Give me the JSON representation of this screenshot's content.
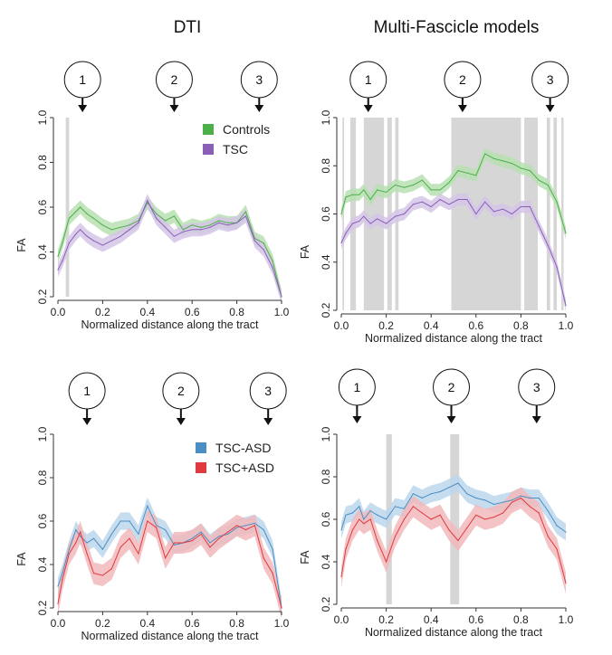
{
  "columns": [
    "DTI",
    "Multi-Fascicle models"
  ],
  "marker_labels": [
    "1",
    "2",
    "3"
  ],
  "palette": {
    "Controls": "#4daf4a",
    "TSC": "#8a5fb8",
    "TSC-ASD": "#4a8ec4",
    "TSC+ASD": "#e03a3e",
    "significance": "#d6d6d6"
  },
  "chart_data": [
    {
      "type": "line",
      "panel": "top-left",
      "column": "DTI",
      "xlabel": "Normalized distance along the tract",
      "ylabel": "FA",
      "xlim": [
        0,
        1
      ],
      "ylim": [
        0.2,
        1.0
      ],
      "xticks": [
        "0.0",
        "0.2",
        "0.4",
        "0.6",
        "0.8",
        "1.0"
      ],
      "yticks": [
        "0.2",
        "0.4",
        "0.6",
        "0.8",
        "1.0"
      ],
      "markers": [
        0.11,
        0.52,
        0.9
      ],
      "legend": "top-right",
      "significance_bands": [
        [
          0.035,
          0.05
        ]
      ],
      "series": [
        {
          "name": "Controls",
          "x": [
            0,
            0.02,
            0.05,
            0.08,
            0.1,
            0.13,
            0.16,
            0.2,
            0.24,
            0.28,
            0.32,
            0.36,
            0.4,
            0.44,
            0.48,
            0.52,
            0.56,
            0.6,
            0.64,
            0.68,
            0.72,
            0.76,
            0.8,
            0.84,
            0.88,
            0.92,
            0.96,
            1.0
          ],
          "values": [
            0.38,
            0.44,
            0.55,
            0.58,
            0.6,
            0.57,
            0.55,
            0.52,
            0.5,
            0.51,
            0.52,
            0.54,
            0.62,
            0.57,
            0.54,
            0.56,
            0.5,
            0.52,
            0.51,
            0.52,
            0.54,
            0.53,
            0.53,
            0.58,
            0.46,
            0.44,
            0.36,
            0.2
          ],
          "band": 0.03
        },
        {
          "name": "TSC",
          "x": [
            0,
            0.02,
            0.05,
            0.08,
            0.1,
            0.13,
            0.16,
            0.2,
            0.24,
            0.28,
            0.32,
            0.36,
            0.4,
            0.44,
            0.48,
            0.52,
            0.56,
            0.6,
            0.64,
            0.68,
            0.72,
            0.76,
            0.8,
            0.84,
            0.88,
            0.92,
            0.96,
            1.0
          ],
          "values": [
            0.32,
            0.36,
            0.44,
            0.48,
            0.5,
            0.47,
            0.45,
            0.43,
            0.45,
            0.47,
            0.5,
            0.53,
            0.63,
            0.55,
            0.51,
            0.47,
            0.49,
            0.5,
            0.5,
            0.51,
            0.53,
            0.52,
            0.53,
            0.56,
            0.45,
            0.41,
            0.33,
            0.2
          ],
          "band": 0.03
        }
      ]
    },
    {
      "type": "line",
      "panel": "top-right",
      "column": "Multi-Fascicle models",
      "xlabel": "Normalized distance along the tract",
      "ylabel": "FA",
      "xlim": [
        0,
        1
      ],
      "ylim": [
        0.2,
        1.0
      ],
      "xticks": [
        "0.0",
        "0.2",
        "0.4",
        "0.6",
        "0.8",
        "1.0"
      ],
      "yticks": [
        "0.2",
        "0.4",
        "0.6",
        "0.8",
        "1.0"
      ],
      "markers": [
        0.12,
        0.54,
        0.93
      ],
      "significance_bands": [
        [
          0.005,
          0.012
        ],
        [
          0.04,
          0.065
        ],
        [
          0.1,
          0.19
        ],
        [
          0.205,
          0.225
        ],
        [
          0.24,
          0.255
        ],
        [
          0.49,
          0.8
        ],
        [
          0.815,
          0.875
        ],
        [
          0.915,
          0.93
        ],
        [
          0.945,
          0.96
        ],
        [
          0.98,
          0.99
        ]
      ],
      "series": [
        {
          "name": "Controls",
          "x": [
            0,
            0.02,
            0.05,
            0.08,
            0.1,
            0.13,
            0.16,
            0.2,
            0.24,
            0.28,
            0.32,
            0.36,
            0.4,
            0.44,
            0.48,
            0.52,
            0.56,
            0.6,
            0.64,
            0.68,
            0.72,
            0.76,
            0.8,
            0.84,
            0.88,
            0.92,
            0.96,
            1.0
          ],
          "values": [
            0.6,
            0.67,
            0.68,
            0.68,
            0.7,
            0.66,
            0.7,
            0.69,
            0.72,
            0.71,
            0.72,
            0.74,
            0.7,
            0.7,
            0.73,
            0.78,
            0.77,
            0.76,
            0.85,
            0.83,
            0.82,
            0.81,
            0.79,
            0.78,
            0.74,
            0.72,
            0.65,
            0.52
          ],
          "band": 0.025
        },
        {
          "name": "TSC",
          "x": [
            0,
            0.02,
            0.05,
            0.08,
            0.1,
            0.13,
            0.16,
            0.2,
            0.24,
            0.28,
            0.32,
            0.36,
            0.4,
            0.44,
            0.48,
            0.52,
            0.56,
            0.6,
            0.64,
            0.68,
            0.72,
            0.76,
            0.8,
            0.84,
            0.88,
            0.92,
            0.96,
            1.0
          ],
          "values": [
            0.48,
            0.52,
            0.56,
            0.57,
            0.59,
            0.56,
            0.58,
            0.56,
            0.59,
            0.6,
            0.64,
            0.65,
            0.63,
            0.66,
            0.64,
            0.66,
            0.66,
            0.6,
            0.65,
            0.61,
            0.62,
            0.6,
            0.63,
            0.63,
            0.55,
            0.47,
            0.38,
            0.22
          ],
          "band": 0.025
        }
      ]
    },
    {
      "type": "line",
      "panel": "bottom-left",
      "column": "DTI",
      "xlabel": "Normalized distance along the tract",
      "ylabel": "FA",
      "xlim": [
        0,
        1
      ],
      "ylim": [
        0.2,
        1.0
      ],
      "xticks": [
        "0.0",
        "0.2",
        "0.4",
        "0.6",
        "0.8",
        "1.0"
      ],
      "yticks": [
        "0.2",
        "0.4",
        "0.6",
        "0.8",
        "1.0"
      ],
      "markers": [
        0.13,
        0.55,
        0.94
      ],
      "legend": "top-right",
      "significance_bands": [],
      "series": [
        {
          "name": "TSC-ASD",
          "x": [
            0,
            0.02,
            0.05,
            0.08,
            0.1,
            0.13,
            0.16,
            0.2,
            0.24,
            0.28,
            0.32,
            0.36,
            0.4,
            0.44,
            0.48,
            0.52,
            0.56,
            0.6,
            0.64,
            0.68,
            0.72,
            0.76,
            0.8,
            0.84,
            0.88,
            0.92,
            0.96,
            1.0
          ],
          "values": [
            0.3,
            0.36,
            0.47,
            0.56,
            0.53,
            0.5,
            0.52,
            0.47,
            0.54,
            0.6,
            0.6,
            0.54,
            0.67,
            0.58,
            0.56,
            0.49,
            0.5,
            0.52,
            0.55,
            0.5,
            0.53,
            0.54,
            0.57,
            0.58,
            0.59,
            0.56,
            0.47,
            0.2
          ],
          "band": 0.04
        },
        {
          "name": "TSC+ASD",
          "x": [
            0,
            0.02,
            0.05,
            0.08,
            0.1,
            0.13,
            0.16,
            0.2,
            0.24,
            0.28,
            0.32,
            0.36,
            0.4,
            0.44,
            0.48,
            0.52,
            0.56,
            0.6,
            0.64,
            0.68,
            0.72,
            0.76,
            0.8,
            0.84,
            0.88,
            0.92,
            0.96,
            1.0
          ],
          "values": [
            0.22,
            0.33,
            0.45,
            0.5,
            0.55,
            0.45,
            0.36,
            0.35,
            0.38,
            0.48,
            0.52,
            0.45,
            0.6,
            0.57,
            0.43,
            0.5,
            0.5,
            0.51,
            0.54,
            0.48,
            0.52,
            0.55,
            0.58,
            0.56,
            0.58,
            0.43,
            0.36,
            0.2
          ],
          "band": 0.05
        }
      ]
    },
    {
      "type": "line",
      "panel": "bottom-right",
      "column": "Multi-Fascicle models",
      "xlabel": "Normalized distance along the tract",
      "ylabel": "FA",
      "xlim": [
        0,
        1
      ],
      "ylim": [
        0.2,
        1.0
      ],
      "xticks": [
        "0.0",
        "0.2",
        "0.4",
        "0.6",
        "0.8",
        "1.0"
      ],
      "yticks": [
        "0.2",
        "0.4",
        "0.6",
        "0.8",
        "1.0"
      ],
      "markers": [
        0.07,
        0.49,
        0.87
      ],
      "significance_bands": [
        [
          0.2,
          0.225
        ],
        [
          0.485,
          0.525
        ]
      ],
      "series": [
        {
          "name": "TSC-ASD",
          "x": [
            0,
            0.02,
            0.05,
            0.08,
            0.1,
            0.13,
            0.16,
            0.2,
            0.24,
            0.28,
            0.32,
            0.36,
            0.4,
            0.44,
            0.48,
            0.52,
            0.56,
            0.6,
            0.64,
            0.68,
            0.72,
            0.76,
            0.8,
            0.84,
            0.88,
            0.92,
            0.96,
            1.0
          ],
          "values": [
            0.55,
            0.62,
            0.63,
            0.66,
            0.6,
            0.64,
            0.62,
            0.6,
            0.66,
            0.65,
            0.72,
            0.7,
            0.72,
            0.73,
            0.75,
            0.77,
            0.72,
            0.7,
            0.69,
            0.67,
            0.68,
            0.69,
            0.71,
            0.7,
            0.7,
            0.64,
            0.57,
            0.54
          ],
          "band": 0.04
        },
        {
          "name": "TSC+ASD",
          "x": [
            0,
            0.02,
            0.05,
            0.08,
            0.1,
            0.13,
            0.16,
            0.2,
            0.24,
            0.28,
            0.32,
            0.36,
            0.4,
            0.44,
            0.48,
            0.52,
            0.56,
            0.6,
            0.64,
            0.68,
            0.72,
            0.76,
            0.8,
            0.84,
            0.88,
            0.92,
            0.96,
            1.0
          ],
          "values": [
            0.33,
            0.46,
            0.55,
            0.6,
            0.58,
            0.6,
            0.5,
            0.4,
            0.52,
            0.6,
            0.66,
            0.63,
            0.6,
            0.62,
            0.55,
            0.5,
            0.56,
            0.62,
            0.6,
            0.61,
            0.63,
            0.68,
            0.7,
            0.66,
            0.63,
            0.52,
            0.46,
            0.3
          ],
          "band": 0.05
        }
      ]
    }
  ]
}
